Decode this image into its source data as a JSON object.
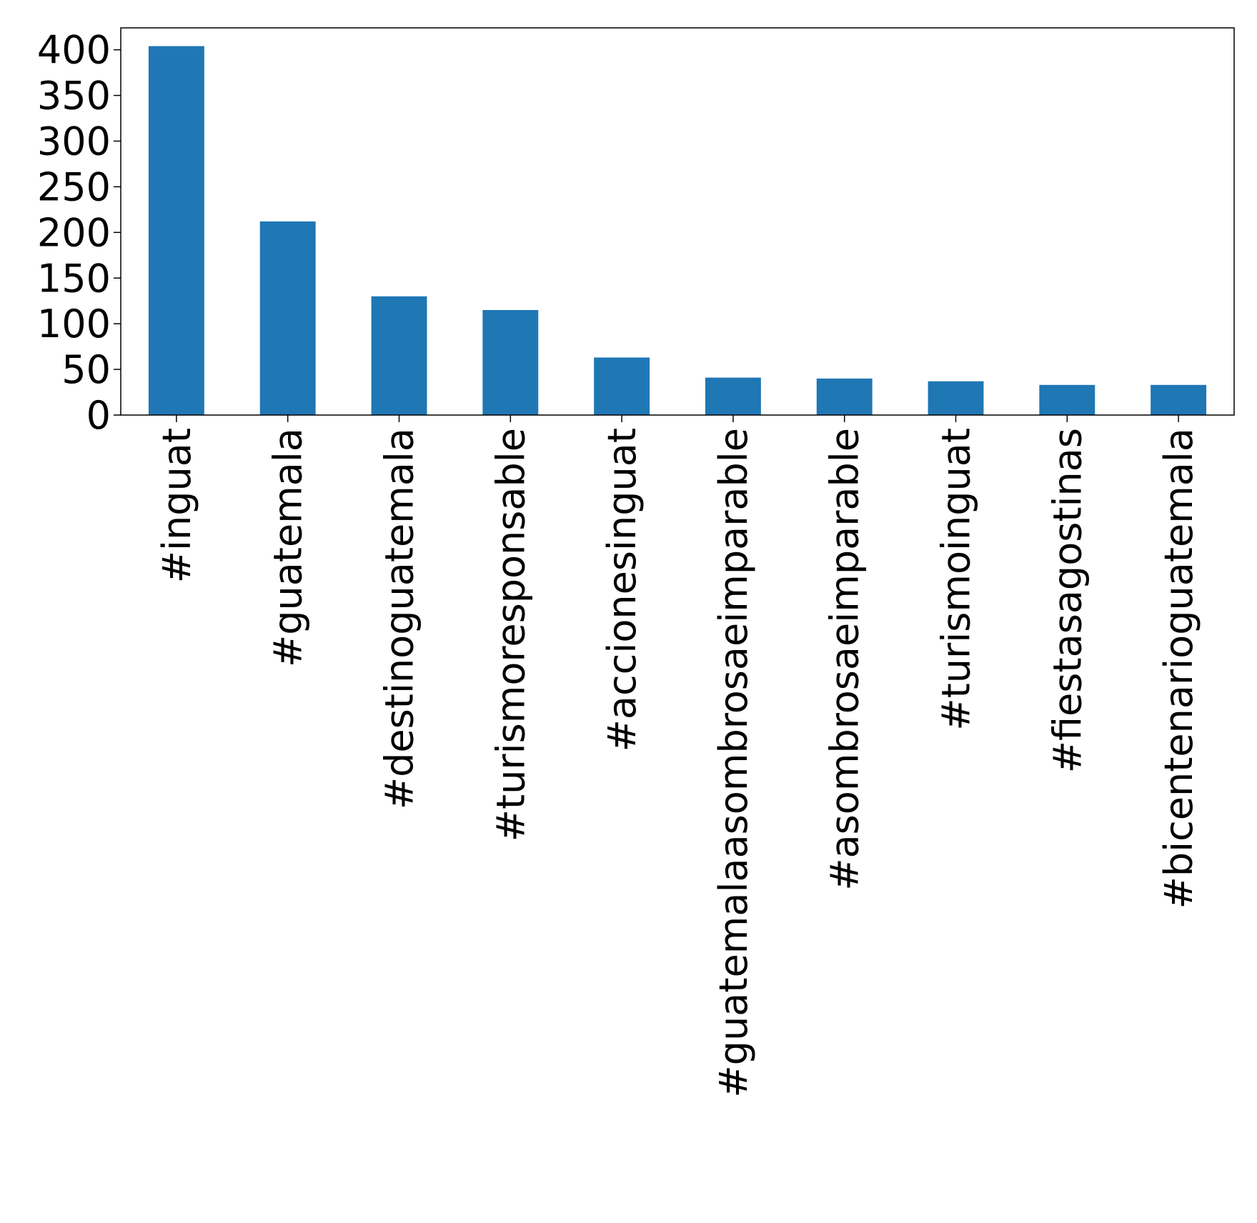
{
  "chart_data": {
    "type": "bar",
    "categories": [
      "#inguat",
      "#guatemala",
      "#destinoguatemala",
      "#turismoresponsable",
      "#accionesinguat",
      "#guatemalaasombrosaeimparable",
      "#asombrosaeimparable",
      "#turismoinguat",
      "#fiestasagostinas",
      "#bicentenarioguatemala"
    ],
    "values": [
      404,
      212,
      130,
      115,
      63,
      41,
      40,
      37,
      33,
      33
    ],
    "color": "#1f77b4",
    "ylim": [
      0,
      424
    ],
    "yticks": [
      0,
      50,
      100,
      150,
      200,
      250,
      300,
      350,
      400
    ],
    "grid": false
  }
}
